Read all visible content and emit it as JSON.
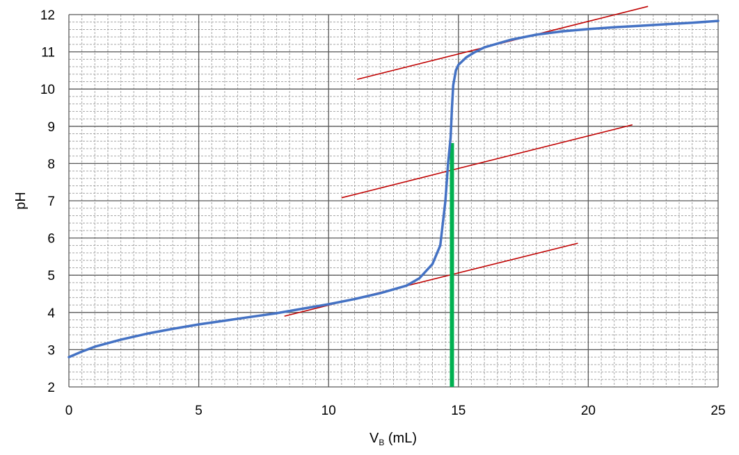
{
  "chart_data": {
    "type": "line",
    "xlabel": {
      "main": "V",
      "sub": "B",
      "rest": " (mL)"
    },
    "ylabel": "pH",
    "xlim": [
      0,
      25
    ],
    "ylim": [
      2,
      12
    ],
    "x_ticks": [
      "0",
      "5",
      "10",
      "15",
      "20",
      "25"
    ],
    "y_ticks": [
      "2",
      "3",
      "4",
      "5",
      "6",
      "7",
      "8",
      "9",
      "10",
      "11",
      "12"
    ],
    "grid": {
      "major": true,
      "minor": true,
      "major_step_x": 5,
      "minor_step_x": 0.5,
      "major_step_y": 1,
      "minor_step_y": 0.2
    },
    "legend": "none",
    "series": [
      {
        "color": "#4472c4",
        "x": [
          0,
          0.5,
          1,
          2,
          3,
          4,
          5,
          6,
          7,
          8,
          9,
          10,
          11,
          12,
          13,
          13.5,
          14,
          14.3,
          14.5,
          14.6,
          14.7,
          14.75,
          14.8,
          14.9,
          15.0,
          15.3,
          15.6,
          16,
          17,
          18,
          19,
          20,
          21,
          22,
          23,
          24,
          25
        ],
        "y": [
          2.8,
          2.95,
          3.08,
          3.27,
          3.43,
          3.56,
          3.68,
          3.78,
          3.88,
          3.98,
          4.1,
          4.22,
          4.36,
          4.52,
          4.72,
          4.92,
          5.3,
          5.8,
          7.0,
          8.0,
          8.7,
          9.5,
          10.1,
          10.5,
          10.65,
          10.85,
          10.98,
          11.12,
          11.32,
          11.46,
          11.55,
          11.61,
          11.66,
          11.7,
          11.74,
          11.78,
          11.83
        ]
      }
    ],
    "tangent_lines": [
      {
        "color": "#c00000",
        "x": [
          8.3,
          19.6
        ],
        "y": [
          3.9,
          5.86
        ]
      },
      {
        "color": "#c00000",
        "x": [
          10.5,
          21.7
        ],
        "y": [
          7.08,
          9.04
        ]
      },
      {
        "color": "#c00000",
        "x": [
          11.1,
          22.3
        ],
        "y": [
          10.26,
          12.22
        ]
      }
    ],
    "equivalence_line": {
      "color": "#00b050",
      "x": 14.75,
      "y": [
        2,
        8.55
      ]
    }
  }
}
